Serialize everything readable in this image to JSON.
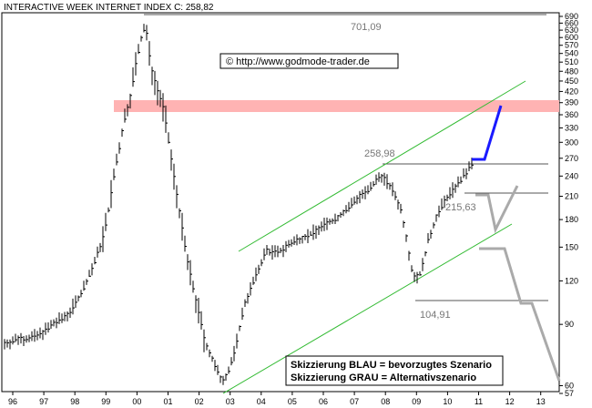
{
  "chart_data": {
    "type": "bar",
    "subtype": "ohlc-log",
    "title": "INTERACTIVE WEEK INTERNET INDEX",
    "last_label": "C:",
    "last_value": "258,82",
    "watermark": "© http://www.godmode-trader.de",
    "x_ticks": [
      "96",
      "97",
      "98",
      "99",
      "00",
      "01",
      "02",
      "03",
      "04",
      "05",
      "06",
      "07",
      "08",
      "09",
      "10",
      "11",
      "12",
      "13"
    ],
    "y_ticks": [
      "57",
      "60",
      "90",
      "120",
      "150",
      "180",
      "210",
      "240",
      "270",
      "300",
      "330",
      "360",
      "390",
      "420",
      "450",
      "480",
      "510",
      "540",
      "570",
      "600",
      "630",
      "660",
      "690"
    ],
    "y_scale": "log",
    "ylim": [
      57,
      690
    ],
    "annotations": [
      "701,09",
      "258,98",
      "215,63",
      "104,91"
    ],
    "legend": [
      "Skizzierung BLAU = bevorzugtes Szenario",
      "Skizzierung GRAU = Alternativszenario"
    ],
    "resistance_zone": [
      370,
      395
    ],
    "levels": [
      701.09,
      258.98,
      215.63,
      104.91
    ],
    "colors": {
      "bars": "#000000",
      "channel": "#33bb33",
      "zone": "#ffb3b3",
      "blue_scenario": "#1a1aff",
      "gray_scenario": "#aaaaaa",
      "grid": "#555555"
    }
  }
}
